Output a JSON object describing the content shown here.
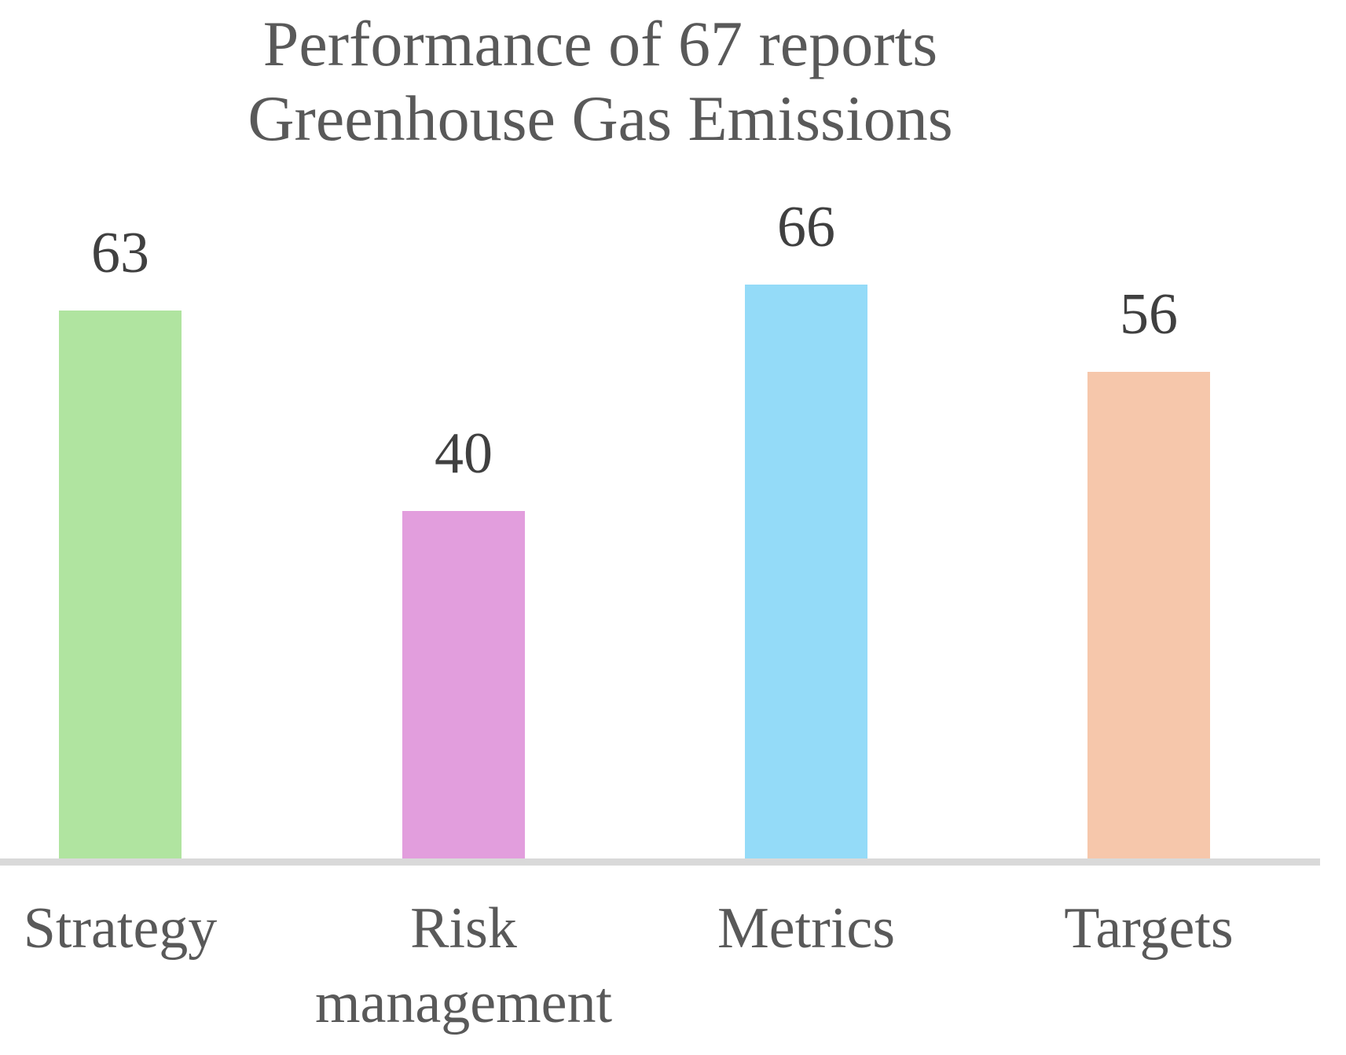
{
  "chart_data": {
    "type": "bar",
    "title": "Performance of 67 reports Greenhouse Gas Emissions",
    "title_lines": [
      "Performance of 67 reports",
      "Greenhouse Gas Emissions"
    ],
    "categories": [
      "Strategy",
      "Risk management",
      "Metrics",
      "Targets"
    ],
    "values": [
      63,
      40,
      66,
      56
    ],
    "series": [
      {
        "name": "Performance of 67 reports Greenhouse Gas Emissions",
        "values": [
          63,
          40,
          66,
          56
        ]
      }
    ],
    "bar_colors": [
      "#b0e4a0",
      "#e29edd",
      "#94dbf8",
      "#f6c7ab"
    ],
    "value_labels": [
      "63",
      "40",
      "66",
      "56"
    ],
    "xlabel": "",
    "ylabel": "",
    "ylim": [
      0,
      70
    ],
    "grid": false,
    "legend": "none",
    "axis_line_color": "#d9d9d9",
    "title_color": "#595959",
    "value_label_color": "#404040",
    "category_label_color": "#595959"
  }
}
